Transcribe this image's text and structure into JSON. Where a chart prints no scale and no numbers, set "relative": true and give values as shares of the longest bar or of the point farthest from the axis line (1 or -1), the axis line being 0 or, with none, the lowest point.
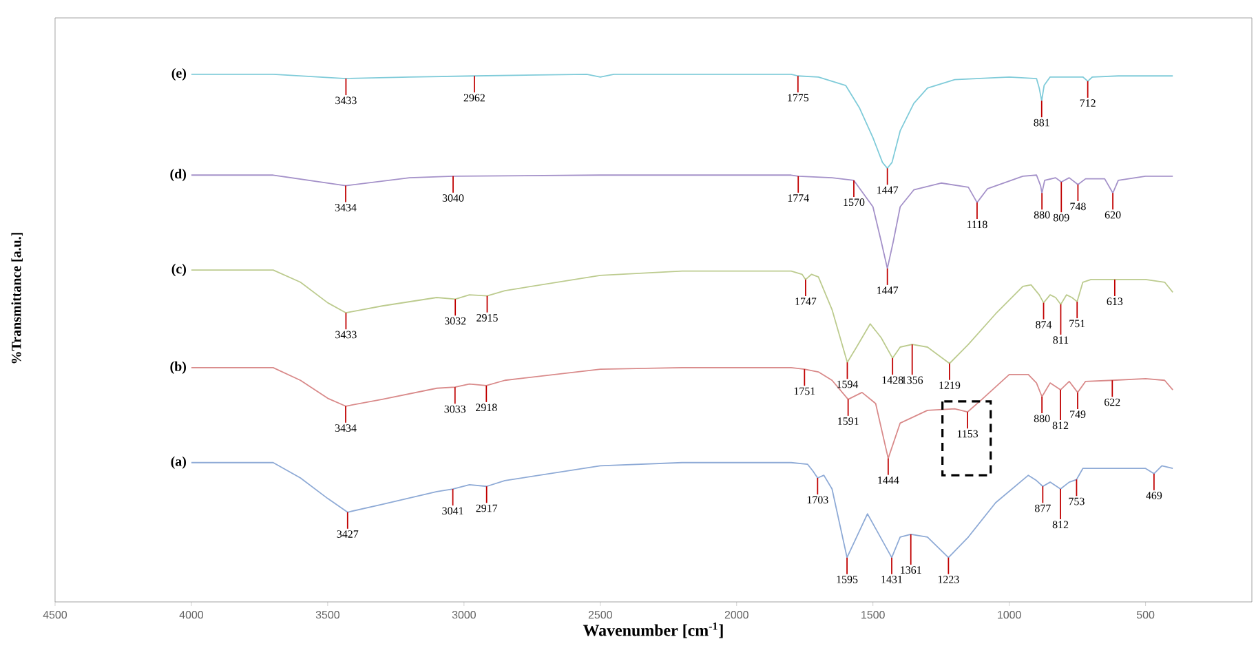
{
  "chart_data": {
    "type": "line",
    "xlabel": "Wavenumber [cm$^{-1}$]",
    "ylabel": "%Transmittance [a.u.]",
    "relative": true,
    "tick_labels": "x",
    "marker": "none",
    "xlim": [
      4500,
      110
    ],
    "xticks": [
      4500,
      4000,
      3500,
      3000,
      2500,
      2000,
      1500,
      1000,
      500
    ],
    "series": [
      {
        "name": "(e)",
        "color": "#7fcbd9",
        "x": [
          4000,
          3700,
          3433,
          3200,
          2962,
          2550,
          2500,
          2450,
          1800,
          1775,
          1700,
          1600,
          1550,
          1500,
          1465,
          1447,
          1430,
          1400,
          1350,
          1300,
          1200,
          1000,
          900,
          890,
          881,
          872,
          850,
          730,
          712,
          695,
          600,
          400
        ],
        "values": [
          1.0,
          1.0,
          0.992,
          0.995,
          0.997,
          1.0,
          0.995,
          1.0,
          1.0,
          0.997,
          0.995,
          0.979,
          0.937,
          0.88,
          0.833,
          0.822,
          0.833,
          0.893,
          0.945,
          0.974,
          0.99,
          0.995,
          0.992,
          0.974,
          0.95,
          0.979,
          0.995,
          0.995,
          0.987,
          0.995,
          0.997,
          0.997
        ]
      },
      {
        "name": "(d)",
        "color": "#a491c9",
        "x": [
          4000,
          3700,
          3434,
          3200,
          3040,
          2500,
          1800,
          1774,
          1650,
          1570,
          1500,
          1470,
          1447,
          1425,
          1400,
          1350,
          1250,
          1150,
          1118,
          1080,
          950,
          900,
          885,
          880,
          870,
          830,
          809,
          780,
          748,
          720,
          650,
          620,
          600,
          500,
          400
        ],
        "values": [
          0.809,
          0.809,
          0.789,
          0.804,
          0.807,
          0.809,
          0.809,
          0.807,
          0.804,
          0.799,
          0.749,
          0.684,
          0.632,
          0.684,
          0.749,
          0.781,
          0.794,
          0.786,
          0.757,
          0.783,
          0.807,
          0.809,
          0.789,
          0.775,
          0.799,
          0.804,
          0.796,
          0.804,
          0.791,
          0.802,
          0.802,
          0.775,
          0.799,
          0.807,
          0.807
        ]
      },
      {
        "name": "(c)",
        "color": "#bccb8e",
        "x": [
          4000,
          3700,
          3600,
          3500,
          3433,
          3300,
          3100,
          3032,
          2980,
          2915,
          2850,
          2500,
          2200,
          1800,
          1760,
          1747,
          1725,
          1700,
          1650,
          1594,
          1560,
          1510,
          1470,
          1428,
          1400,
          1356,
          1300,
          1219,
          1150,
          1050,
          950,
          920,
          890,
          874,
          850,
          830,
          811,
          790,
          770,
          751,
          730,
          700,
          613,
          500,
          430,
          400
        ],
        "values": [
          0.629,
          0.629,
          0.606,
          0.567,
          0.548,
          0.561,
          0.577,
          0.574,
          0.582,
          0.58,
          0.59,
          0.619,
          0.627,
          0.627,
          0.621,
          0.611,
          0.621,
          0.616,
          0.554,
          0.454,
          0.483,
          0.527,
          0.501,
          0.462,
          0.483,
          0.488,
          0.483,
          0.452,
          0.488,
          0.546,
          0.598,
          0.601,
          0.582,
          0.567,
          0.582,
          0.577,
          0.564,
          0.582,
          0.577,
          0.569,
          0.606,
          0.611,
          0.611,
          0.611,
          0.606,
          0.587
        ]
      },
      {
        "name": "(b)",
        "color": "#d98a8a",
        "x": [
          4000,
          3700,
          3600,
          3500,
          3434,
          3300,
          3100,
          3033,
          2980,
          2918,
          2850,
          2500,
          2200,
          1800,
          1751,
          1700,
          1650,
          1591,
          1540,
          1490,
          1444,
          1400,
          1300,
          1200,
          1153,
          1100,
          1000,
          930,
          900,
          880,
          850,
          812,
          780,
          749,
          720,
          622,
          500,
          430,
          400
        ],
        "values": [
          0.444,
          0.444,
          0.42,
          0.386,
          0.371,
          0.384,
          0.405,
          0.407,
          0.413,
          0.41,
          0.42,
          0.441,
          0.444,
          0.444,
          0.441,
          0.436,
          0.42,
          0.384,
          0.397,
          0.376,
          0.272,
          0.339,
          0.363,
          0.366,
          0.36,
          0.384,
          0.431,
          0.431,
          0.415,
          0.389,
          0.415,
          0.402,
          0.418,
          0.397,
          0.418,
          0.42,
          0.423,
          0.42,
          0.402
        ]
      },
      {
        "name": "(a)",
        "color": "#8eaad6",
        "x": [
          4000,
          3700,
          3600,
          3500,
          3427,
          3300,
          3100,
          3041,
          2980,
          2917,
          2850,
          2500,
          2200,
          1800,
          1740,
          1720,
          1703,
          1680,
          1650,
          1595,
          1520,
          1431,
          1400,
          1361,
          1300,
          1223,
          1150,
          1050,
          930,
          900,
          877,
          850,
          812,
          780,
          753,
          730,
          600,
          500,
          469,
          440,
          400
        ],
        "values": [
          0.264,
          0.264,
          0.235,
          0.196,
          0.17,
          0.185,
          0.209,
          0.214,
          0.222,
          0.219,
          0.23,
          0.258,
          0.264,
          0.264,
          0.261,
          0.248,
          0.235,
          0.24,
          0.214,
          0.084,
          0.167,
          0.084,
          0.123,
          0.128,
          0.123,
          0.084,
          0.123,
          0.188,
          0.24,
          0.23,
          0.219,
          0.227,
          0.214,
          0.227,
          0.232,
          0.253,
          0.253,
          0.253,
          0.243,
          0.258,
          0.253
        ]
      }
    ],
    "annotations": [
      {
        "text": "3433",
        "x": 3433,
        "y": 0.992
      },
      {
        "text": "2962",
        "x": 2962,
        "y": 0.997
      },
      {
        "text": "1775",
        "x": 1775,
        "y": 0.997
      },
      {
        "text": "1447",
        "x": 1447,
        "y": 0.822
      },
      {
        "text": "881",
        "x": 881,
        "y": 0.95
      },
      {
        "text": "712",
        "x": 712,
        "y": 0.987
      },
      {
        "text": "3434",
        "x": 3434,
        "y": 0.789
      },
      {
        "text": "3040",
        "x": 3040,
        "y": 0.807
      },
      {
        "text": "1774",
        "x": 1774,
        "y": 0.807
      },
      {
        "text": "1570",
        "x": 1570,
        "y": 0.799
      },
      {
        "text": "1447",
        "x": 1447,
        "y": 0.632
      },
      {
        "text": "1118",
        "x": 1118,
        "y": 0.757
      },
      {
        "text": "880",
        "x": 880,
        "y": 0.775
      },
      {
        "text": "809",
        "x": 809,
        "y": 0.796
      },
      {
        "text": "748",
        "x": 748,
        "y": 0.791
      },
      {
        "text": "620",
        "x": 620,
        "y": 0.775
      },
      {
        "text": "3433",
        "x": 3433,
        "y": 0.548
      },
      {
        "text": "3032",
        "x": 3032,
        "y": 0.574
      },
      {
        "text": "2915",
        "x": 2915,
        "y": 0.58
      },
      {
        "text": "1747",
        "x": 1747,
        "y": 0.611
      },
      {
        "text": "1594",
        "x": 1594,
        "y": 0.454
      },
      {
        "text": "1428",
        "x": 1428,
        "y": 0.462
      },
      {
        "text": "1356",
        "x": 1356,
        "y": 0.488
      },
      {
        "text": "1219",
        "x": 1219,
        "y": 0.452
      },
      {
        "text": "874",
        "x": 874,
        "y": 0.567
      },
      {
        "text": "811",
        "x": 811,
        "y": 0.564
      },
      {
        "text": "751",
        "x": 751,
        "y": 0.569
      },
      {
        "text": "613",
        "x": 613,
        "y": 0.611
      },
      {
        "text": "3434",
        "x": 3434,
        "y": 0.371
      },
      {
        "text": "3033",
        "x": 3033,
        "y": 0.407
      },
      {
        "text": "2918",
        "x": 2918,
        "y": 0.41
      },
      {
        "text": "1751",
        "x": 1751,
        "y": 0.441
      },
      {
        "text": "1591",
        "x": 1591,
        "y": 0.384
      },
      {
        "text": "1444",
        "x": 1444,
        "y": 0.272
      },
      {
        "text": "1153",
        "x": 1153,
        "y": 0.36
      },
      {
        "text": "880",
        "x": 880,
        "y": 0.389
      },
      {
        "text": "812",
        "x": 812,
        "y": 0.402
      },
      {
        "text": "749",
        "x": 749,
        "y": 0.397
      },
      {
        "text": "622",
        "x": 622,
        "y": 0.42
      },
      {
        "text": "3427",
        "x": 3427,
        "y": 0.17
      },
      {
        "text": "3041",
        "x": 3041,
        "y": 0.214
      },
      {
        "text": "2917",
        "x": 2917,
        "y": 0.219
      },
      {
        "text": "1703",
        "x": 1703,
        "y": 0.235
      },
      {
        "text": "1595",
        "x": 1595,
        "y": 0.084
      },
      {
        "text": "1431",
        "x": 1431,
        "y": 0.084
      },
      {
        "text": "1361",
        "x": 1361,
        "y": 0.128
      },
      {
        "text": "1223",
        "x": 1223,
        "y": 0.084
      },
      {
        "text": "877",
        "x": 877,
        "y": 0.219
      },
      {
        "text": "812",
        "x": 812,
        "y": 0.214
      },
      {
        "text": "753",
        "x": 753,
        "y": 0.232
      },
      {
        "text": "469",
        "x": 469,
        "y": 0.243
      }
    ]
  }
}
